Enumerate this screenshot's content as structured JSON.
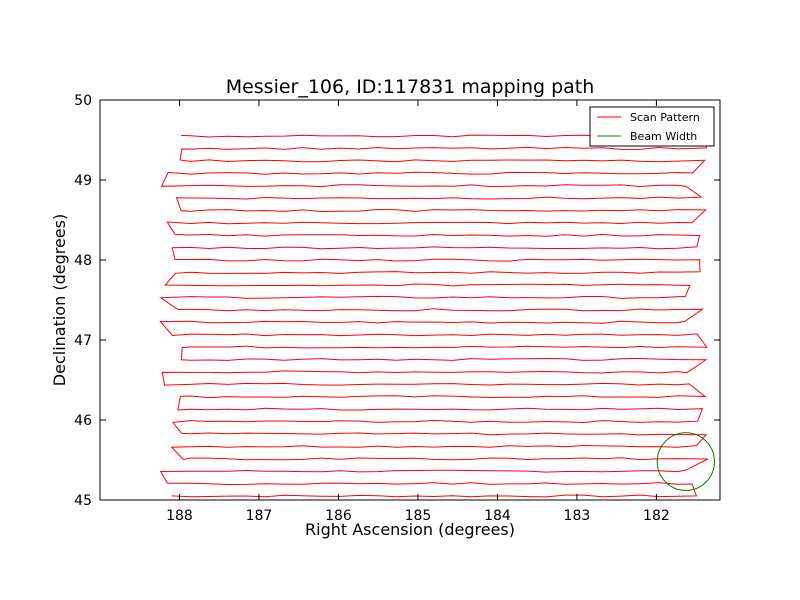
{
  "chart_data": {
    "type": "line",
    "title": "Messier_106, ID:117831 mapping path",
    "xlabel": "Right Ascension (degrees)",
    "ylabel": "Declination (degrees)",
    "xlim": [
      189.0,
      181.2
    ],
    "ylim": [
      45.0,
      50.0
    ],
    "x_inverted": true,
    "xticks": [
      "188",
      "187",
      "186",
      "185",
      "184",
      "183",
      "182"
    ],
    "xtick_values": [
      188,
      187,
      186,
      185,
      184,
      183,
      182
    ],
    "yticks": [
      "45",
      "46",
      "47",
      "48",
      "49",
      "50"
    ],
    "ytick_values": [
      45,
      46,
      47,
      48,
      49,
      50
    ],
    "grid": false,
    "legend_position": "upper right",
    "series": [
      {
        "name": "Scan Pattern",
        "color": "#ff0000",
        "scan_lines": {
          "ra_west": 188.1,
          "ra_east": 181.5,
          "dec_start": 45.05,
          "dec_end": 49.55,
          "line_count": 30
        }
      },
      {
        "name": "Beam Width",
        "color": "#008000",
        "circle": {
          "ra_center": 181.63,
          "dec_center": 45.48,
          "radius_deg": 0.36
        }
      }
    ]
  }
}
